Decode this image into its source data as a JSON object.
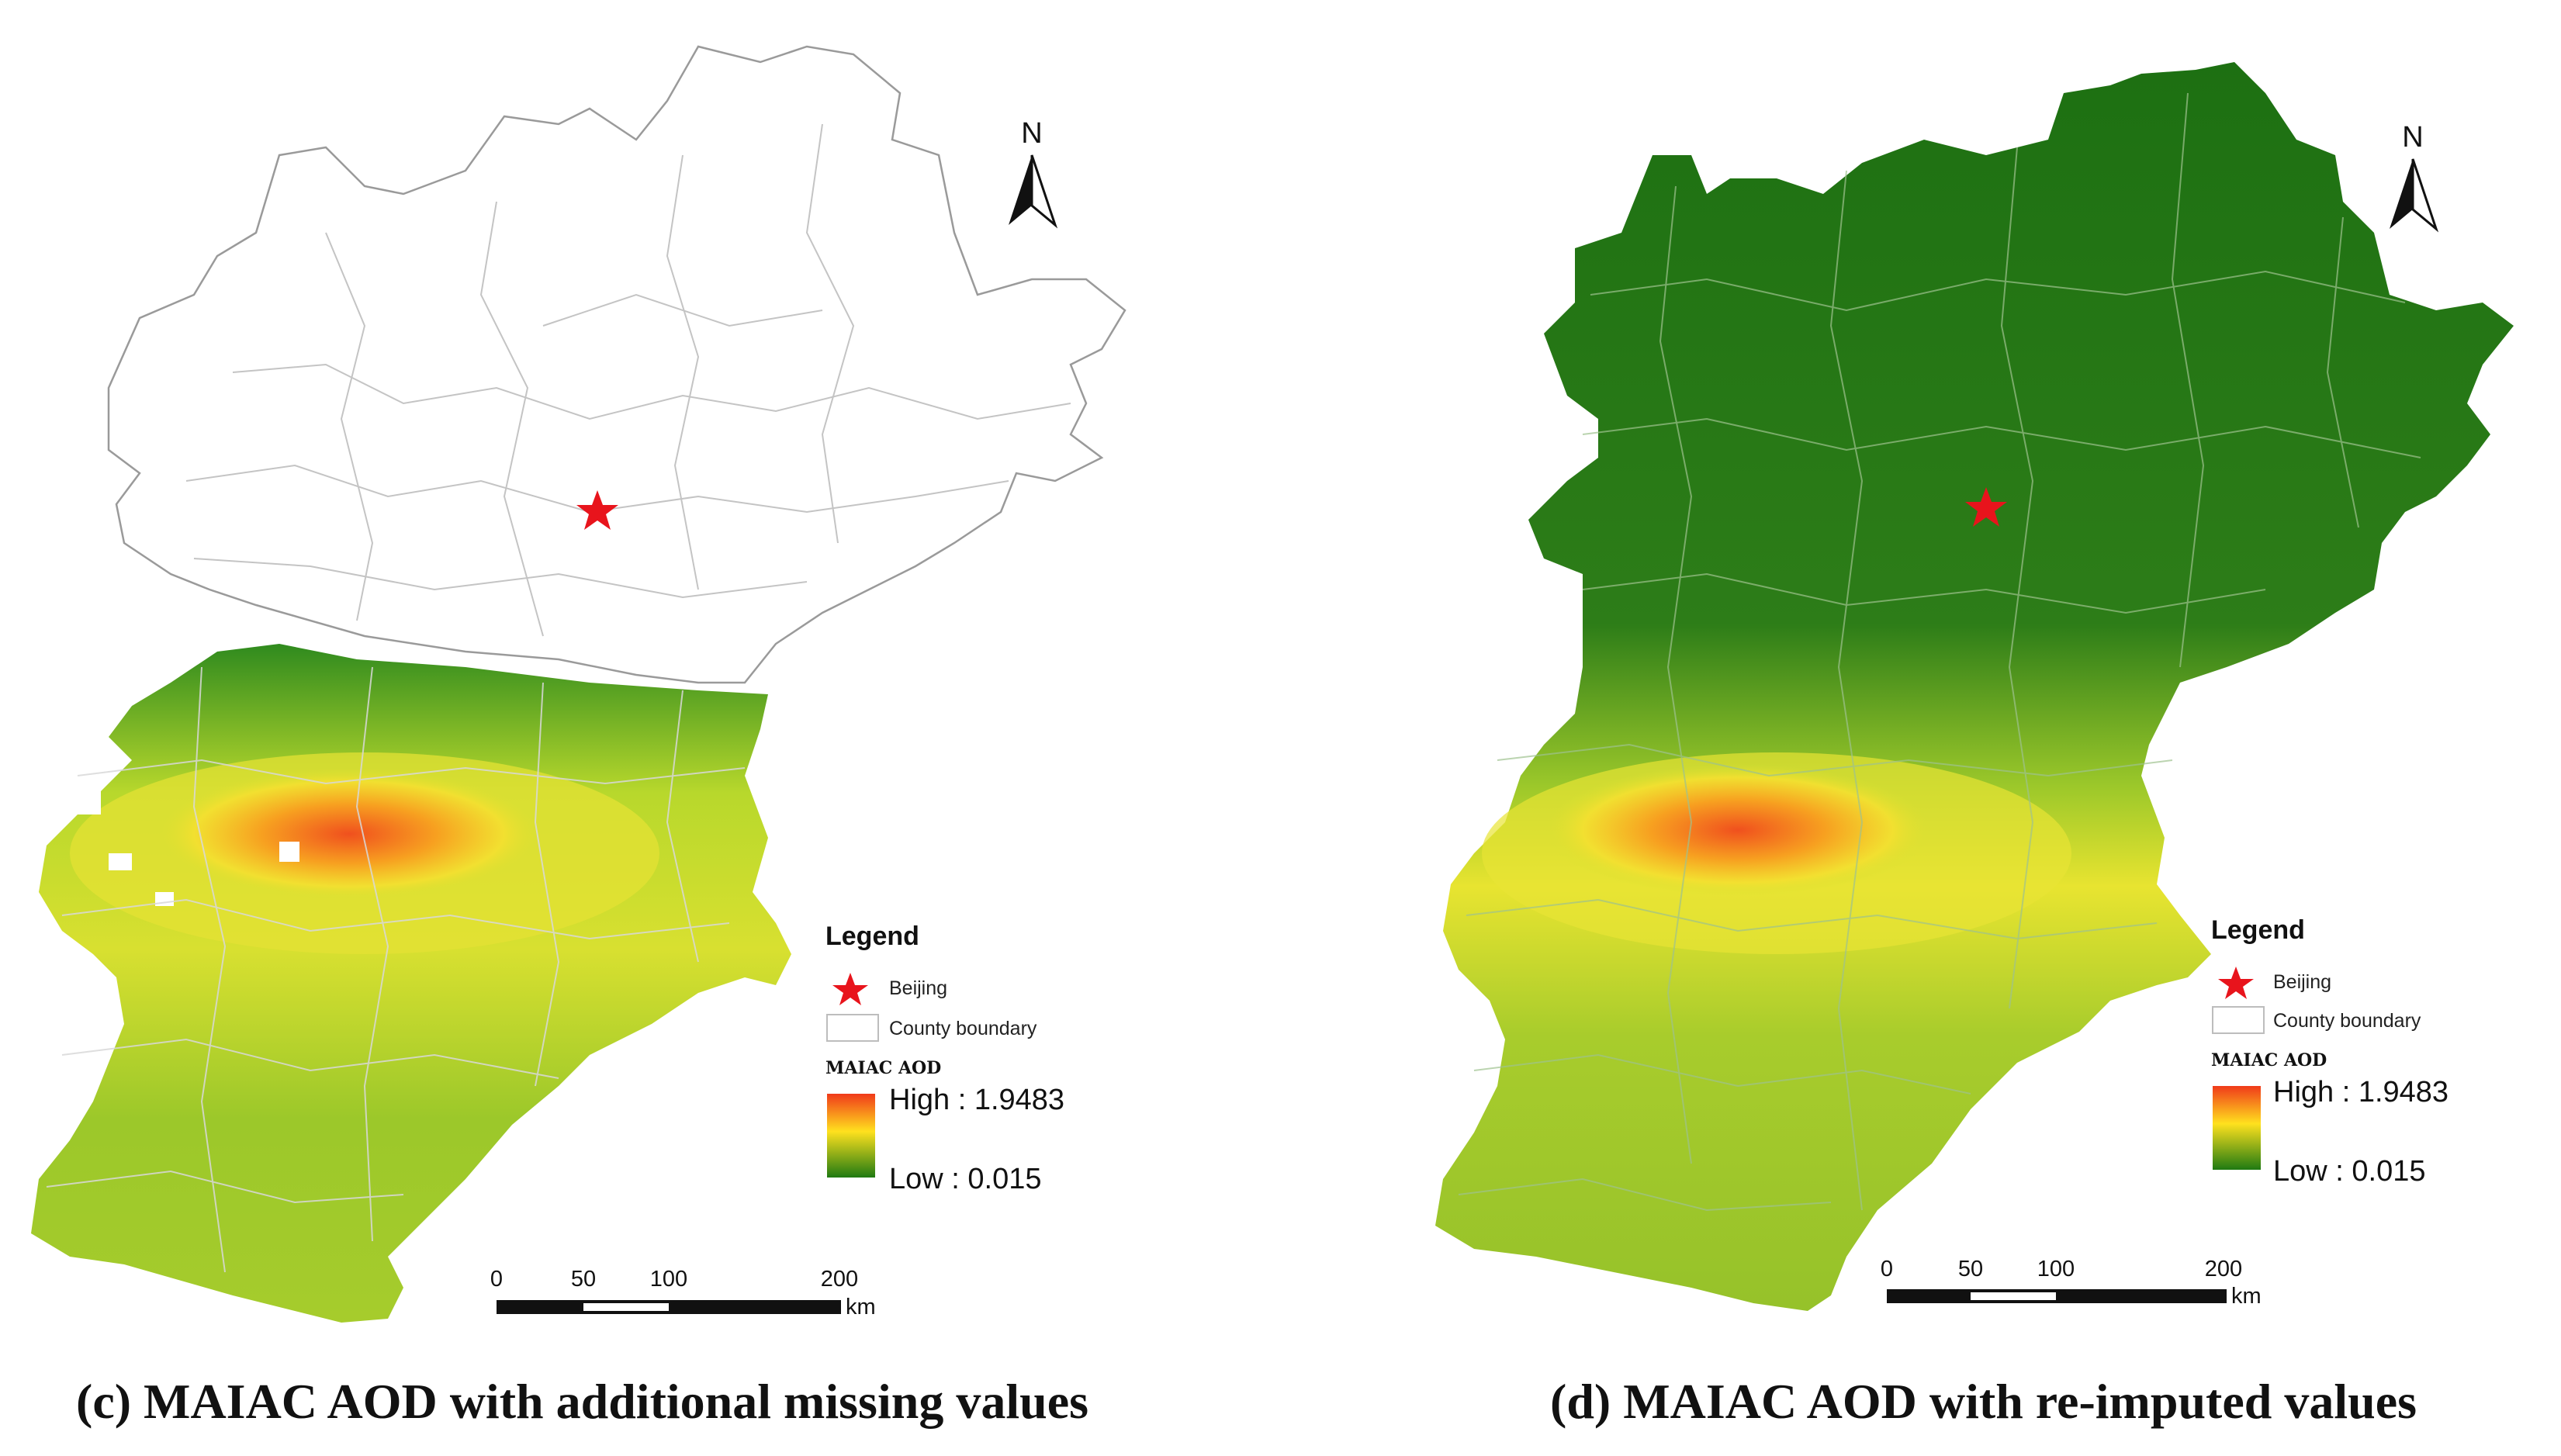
{
  "panels": [
    {
      "id": "c",
      "caption": "(c) MAIAC AOD with additional missing values",
      "legend": {
        "title": "Legend",
        "beijing_label": "Beijing",
        "county_label": "County boundary",
        "ramp_title": "MAIAC AOD",
        "high_label": "High : 1.9483",
        "low_label": "Low : 0.015"
      },
      "north": "N",
      "scale": {
        "ticks": [
          "0",
          "50",
          "100",
          "200"
        ],
        "unit": "km"
      }
    },
    {
      "id": "d",
      "caption": "(d) MAIAC AOD with re-imputed values",
      "legend": {
        "title": "Legend",
        "beijing_label": "Beijing",
        "county_label": "County boundary",
        "ramp_title": "MAIAC AOD",
        "high_label": "High : 1.9483",
        "low_label": "Low : 0.015"
      },
      "north": "N",
      "scale": {
        "ticks": [
          "0",
          "50",
          "100",
          "200"
        ],
        "unit": "km"
      }
    }
  ],
  "colors": {
    "high": "#f03a1a",
    "mid": "#ffe11e",
    "low": "#1f7a12",
    "dark_green": "#2b7a1a",
    "beijing_star": "#e8141c"
  }
}
